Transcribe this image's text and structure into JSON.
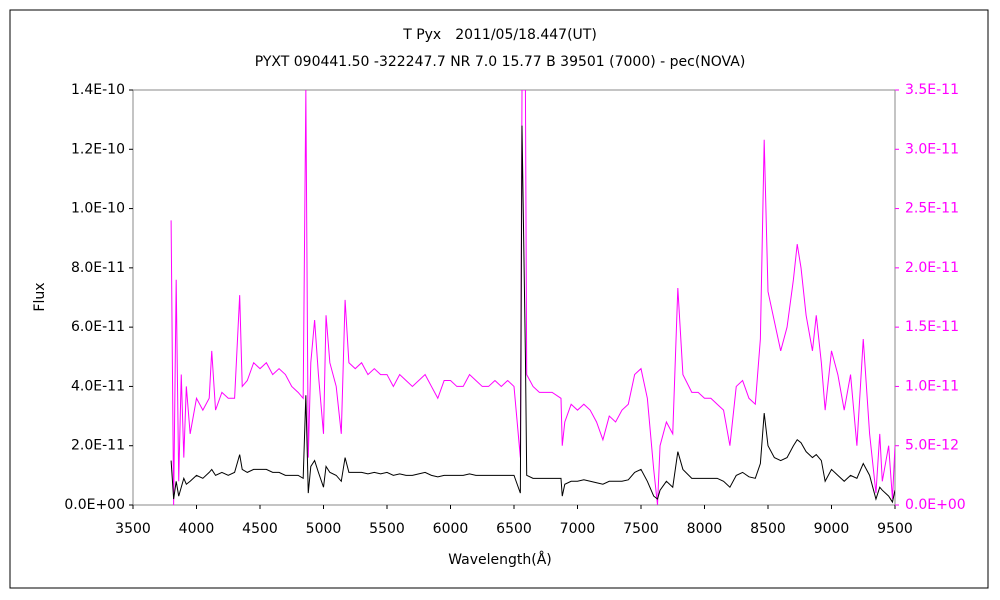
{
  "chart_data": {
    "type": "line",
    "title": "T Pyx　2011/05/18.447(UT)",
    "subtitle": "PYXT 090441.50 -322247.7 NR 7.0 15.77 B 39501 (7000) - pec(NOVA)",
    "xlabel": "Wavelength(Å)",
    "ylabel": "Flux",
    "x": [
      3800,
      3820,
      3840,
      3860,
      3880,
      3900,
      3920,
      3950,
      4000,
      4050,
      4100,
      4120,
      4150,
      4200,
      4250,
      4300,
      4340,
      4360,
      4400,
      4450,
      4500,
      4550,
      4600,
      4650,
      4700,
      4750,
      4800,
      4840,
      4861,
      4880,
      4900,
      4930,
      4960,
      5000,
      5020,
      5050,
      5100,
      5140,
      5170,
      5200,
      5250,
      5300,
      5350,
      5400,
      5450,
      5500,
      5550,
      5600,
      5650,
      5700,
      5750,
      5800,
      5850,
      5900,
      5950,
      6000,
      6050,
      6100,
      6150,
      6200,
      6250,
      6300,
      6350,
      6400,
      6450,
      6500,
      6550,
      6563,
      6590,
      6600,
      6650,
      6700,
      6750,
      6800,
      6870,
      6880,
      6900,
      6950,
      7000,
      7050,
      7100,
      7150,
      7200,
      7250,
      7300,
      7350,
      7400,
      7450,
      7500,
      7550,
      7600,
      7630,
      7650,
      7700,
      7750,
      7790,
      7830,
      7900,
      7950,
      8000,
      8050,
      8100,
      8150,
      8200,
      8250,
      8300,
      8350,
      8400,
      8440,
      8470,
      8500,
      8550,
      8600,
      8650,
      8700,
      8730,
      8760,
      8800,
      8850,
      8880,
      8920,
      8950,
      9000,
      9050,
      9100,
      9150,
      9200,
      9250,
      9300,
      9350,
      9380,
      9400,
      9450,
      9480,
      9500
    ],
    "series": [
      {
        "color": "#000000",
        "axis": "y",
        "values": [
          1.5e-11,
          2e-12,
          8e-12,
          3e-12,
          6e-12,
          9e-12,
          7e-12,
          8e-12,
          1e-11,
          9e-12,
          1.1e-11,
          1.2e-11,
          1e-11,
          1.1e-11,
          1e-11,
          1.1e-11,
          1.7e-11,
          1.2e-11,
          1.1e-11,
          1.2e-11,
          1.2e-11,
          1.2e-11,
          1.1e-11,
          1.1e-11,
          1e-11,
          1e-11,
          1e-11,
          9e-12,
          3.7e-11,
          4e-12,
          1.3e-11,
          1.5e-11,
          1.1e-11,
          6e-12,
          1.3e-11,
          1.1e-11,
          1e-11,
          8e-12,
          1.6e-11,
          1.1e-11,
          1.1e-11,
          1.1e-11,
          1.05e-11,
          1.1e-11,
          1.05e-11,
          1.1e-11,
          1e-11,
          1.05e-11,
          1e-11,
          1e-11,
          1.05e-11,
          1.1e-11,
          1e-11,
          9.5e-12,
          1e-11,
          1e-11,
          1e-11,
          1e-11,
          1.05e-11,
          1e-11,
          1e-11,
          1e-11,
          1e-11,
          1e-11,
          1e-11,
          1e-11,
          4e-12,
          1.28e-10,
          5e-11,
          1e-11,
          9e-12,
          9e-12,
          9e-12,
          9e-12,
          9e-12,
          3e-12,
          7e-12,
          8e-12,
          8e-12,
          8.5e-12,
          8e-12,
          7.5e-12,
          7e-12,
          8e-12,
          8e-12,
          8e-12,
          8.5e-12,
          1.1e-11,
          1.2e-11,
          8e-12,
          3e-12,
          2e-12,
          5e-12,
          8e-12,
          6e-12,
          1.8e-11,
          1.2e-11,
          9e-12,
          9e-12,
          9e-12,
          9e-12,
          9e-12,
          8e-12,
          6e-12,
          1e-11,
          1.1e-11,
          9.5e-12,
          9e-12,
          1.4e-11,
          3.1e-11,
          2e-11,
          1.6e-11,
          1.5e-11,
          1.6e-11,
          2e-11,
          2.2e-11,
          2.1e-11,
          1.8e-11,
          1.6e-11,
          1.7e-11,
          1.5e-11,
          8e-12,
          1.2e-11,
          1e-11,
          8e-12,
          1e-11,
          9e-12,
          1.4e-11,
          1e-11,
          2e-12,
          6e-12,
          5e-12,
          3e-12,
          1e-12,
          5e-12
        ]
      },
      {
        "color": "#ff00ff",
        "axis": "y2",
        "values": [
          2.4e-11,
          0.0,
          1.9e-11,
          2e-12,
          1.1e-11,
          4e-12,
          1e-11,
          6e-12,
          9e-12,
          8e-12,
          9e-12,
          1.3e-11,
          8e-12,
          9.5e-12,
          9e-12,
          9e-12,
          1.77e-11,
          1e-11,
          1.05e-11,
          1.2e-11,
          1.15e-11,
          1.2e-11,
          1.1e-11,
          1.15e-11,
          1.1e-11,
          1e-11,
          9.5e-12,
          9e-12,
          3.5e-11,
          4e-12,
          1.2e-11,
          1.56e-11,
          1.1e-11,
          6e-12,
          1.6e-11,
          1.2e-11,
          1e-11,
          6e-12,
          1.73e-11,
          1.2e-11,
          1.15e-11,
          1.2e-11,
          1.1e-11,
          1.15e-11,
          1.1e-11,
          1.1e-11,
          1e-11,
          1.1e-11,
          1.05e-11,
          1e-11,
          1.05e-11,
          1.1e-11,
          1e-11,
          9e-12,
          1.05e-11,
          1.05e-11,
          1e-11,
          1e-11,
          1.1e-11,
          1.05e-11,
          1e-11,
          1e-11,
          1.05e-11,
          1e-11,
          1.05e-11,
          1e-11,
          4e-12,
          3.5e-11,
          3.5e-11,
          1.1e-11,
          1e-11,
          9.5e-12,
          9.5e-12,
          9.5e-12,
          9e-12,
          5e-12,
          7e-12,
          8.5e-12,
          8e-12,
          8.5e-12,
          8e-12,
          7e-12,
          5.5e-12,
          7.5e-12,
          7e-12,
          8e-12,
          8.5e-12,
          1.1e-11,
          1.15e-11,
          9e-12,
          3e-12,
          0.0,
          5e-12,
          7e-12,
          6e-12,
          1.83e-11,
          1.1e-11,
          9.5e-12,
          9.5e-12,
          9e-12,
          9e-12,
          8.5e-12,
          8e-12,
          5e-12,
          1e-11,
          1.05e-11,
          9e-12,
          8.5e-12,
          1.4e-11,
          3.08e-11,
          1.8e-11,
          1.55e-11,
          1.3e-11,
          1.5e-11,
          1.9e-11,
          2.2e-11,
          2e-11,
          1.6e-11,
          1.3e-11,
          1.6e-11,
          1.2e-11,
          8e-12,
          1.3e-11,
          1.1e-11,
          8e-12,
          1.1e-11,
          5e-12,
          1.4e-11,
          6e-12,
          1e-12,
          6e-12,
          2e-12,
          5e-12,
          5e-13,
          5e-12
        ]
      }
    ],
    "xlim": [
      3500,
      9500
    ],
    "xticks": [
      3500,
      4000,
      4500,
      5000,
      5500,
      6000,
      6500,
      7000,
      7500,
      8000,
      8500,
      9000,
      9500
    ],
    "ylim": [
      0,
      1.4e-10
    ],
    "yticks": [
      {
        "value": 0,
        "label": "0.0E+00"
      },
      {
        "value": 2e-11,
        "label": "2.0E-11"
      },
      {
        "value": 4e-11,
        "label": "4.0E-11"
      },
      {
        "value": 6e-11,
        "label": "6.0E-11"
      },
      {
        "value": 8e-11,
        "label": "8.0E-11"
      },
      {
        "value": 1e-10,
        "label": "1.0E-10"
      },
      {
        "value": 1.2e-10,
        "label": "1.2E-10"
      },
      {
        "value": 1.4e-10,
        "label": "1.4E-10"
      }
    ],
    "y2lim": [
      0,
      3.5e-11
    ],
    "y2ticks": [
      {
        "value": 0,
        "label": "0.0E+00"
      },
      {
        "value": 5e-12,
        "label": "5.0E-12"
      },
      {
        "value": 1e-11,
        "label": "1.0E-11"
      },
      {
        "value": 1.5e-11,
        "label": "1.5E-11"
      },
      {
        "value": 2e-11,
        "label": "2.0E-11"
      },
      {
        "value": 2.5e-11,
        "label": "2.5E-11"
      },
      {
        "value": 3e-11,
        "label": "3.0E-11"
      },
      {
        "value": 3.5e-11,
        "label": "3.5E-11"
      }
    ],
    "y2color": "#ff00ff"
  }
}
